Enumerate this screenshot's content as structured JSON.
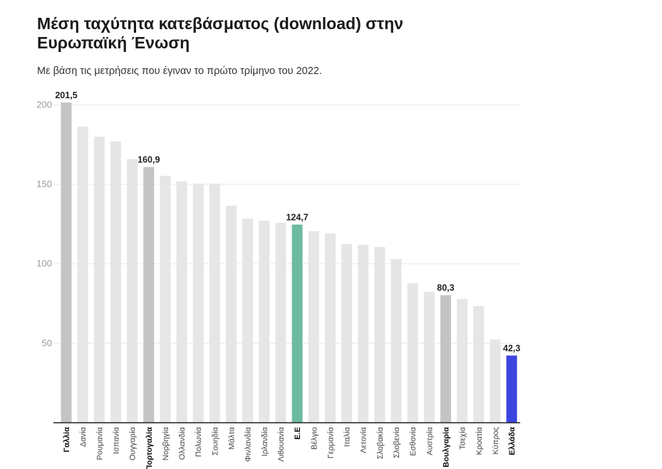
{
  "chart_data": {
    "type": "bar",
    "title": "Μέση ταχύτητα κατεβάσματος (download) στην Ευρωπαϊκή Ένωση",
    "subtitle": "Με βάση τις μετρήσεις που έγιναν το πρώτο τρίμηνο του 2022.",
    "xlabel": "",
    "ylabel": "",
    "ylim": [
      0,
      200
    ],
    "yticks": [
      "50",
      "100",
      "150",
      "200"
    ],
    "grid": true,
    "categories": [
      "Γαλλία",
      "Δανία",
      "Ρουμανία",
      "Ισπανία",
      "Ουγγαρία",
      "Πορτογαλία",
      "Νορβηγία",
      "Ολλανδία",
      "Πολωνία",
      "Σουηδία",
      "Μάλτα",
      "Φινλανδία",
      "Ιρλανδία",
      "Λιθουανία",
      "Ε.Ε",
      "Βέλγιο",
      "Γερμανία",
      "Ιταλία",
      "Λετονία",
      "Σλοβακία",
      "Σλοβενία",
      "Εσθονία",
      "Αυστρία",
      "Βουλγαρία",
      "Τσεχία",
      "Κροατία",
      "Κύπρος",
      "Ελλάδα"
    ],
    "values": [
      201.5,
      186.3,
      180,
      177,
      166,
      160.9,
      155.4,
      151.8,
      150.5,
      150.5,
      136.6,
      128.5,
      127.2,
      125.8,
      124.7,
      120.5,
      119.1,
      112.4,
      112,
      110.6,
      103,
      87.8,
      82.4,
      80.3,
      77.9,
      73.4,
      52.4,
      42.3
    ],
    "data_labels": {
      "Γαλλία": "201,5",
      "Πορτογαλία": "160,9",
      "Ε.Ε": "124,7",
      "Βουλγαρία": "80,3",
      "Ελλάδα": "42,3"
    },
    "colors": {
      "default": "#e6e6e6",
      "highlight": "#c4c4c4",
      "eu": "#6dbb9f",
      "greece": "#3c45e0"
    },
    "color_by_category": {
      "Γαλλία": "highlight",
      "Πορτογαλία": "highlight",
      "Βουλγαρία": "highlight",
      "Ε.Ε": "eu",
      "Ελλάδα": "greece"
    }
  }
}
